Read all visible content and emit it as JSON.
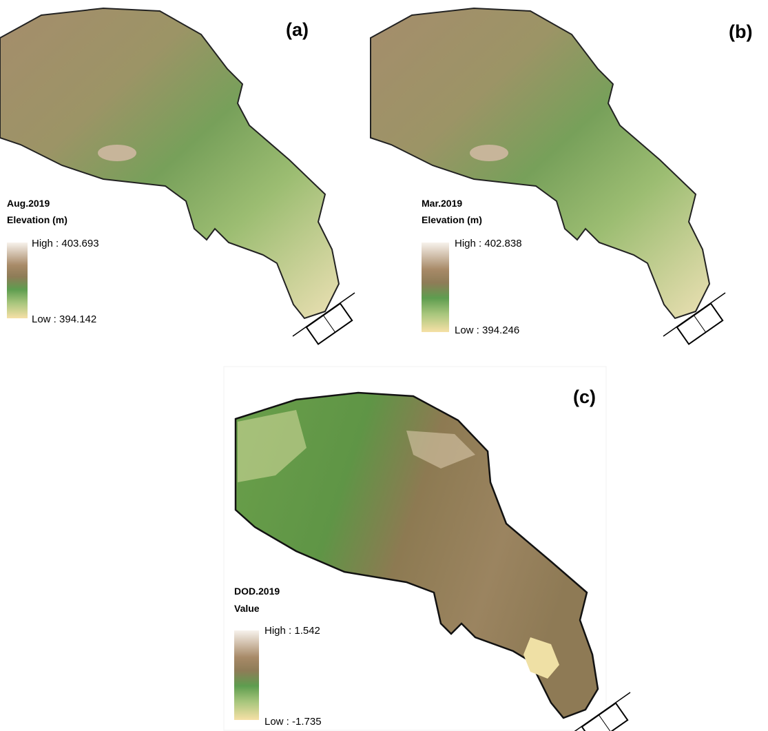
{
  "panels": [
    {
      "label": "(a)",
      "legend_title": "Aug.2019",
      "legend_subtitle": "Elevation (m)",
      "high": "High : 403.693",
      "low": "Low : 394.142"
    },
    {
      "label": "(b)",
      "legend_title": "Mar.2019",
      "legend_subtitle": "Elevation (m)",
      "high": "High : 402.838",
      "low": "Low : 394.246"
    },
    {
      "label": "(c)",
      "legend_title": "DOD.2019",
      "legend_subtitle": "Value",
      "high": "High : 1.542",
      "low": "Low : -1.735"
    }
  ]
}
